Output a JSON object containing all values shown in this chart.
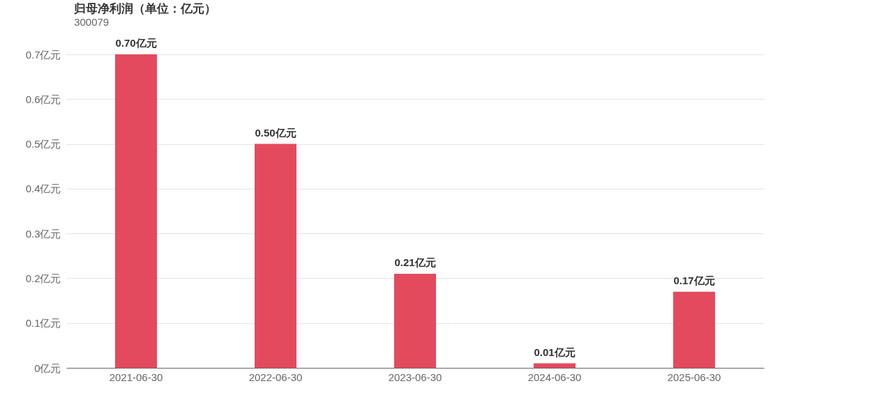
{
  "chart_data": {
    "type": "bar",
    "title": "归母净利润（单位：亿元）",
    "subtitle": "300079",
    "categories": [
      "2021-06-30",
      "2022-06-30",
      "2023-06-30",
      "2024-06-30",
      "2025-06-30"
    ],
    "values": [
      0.7,
      0.5,
      0.21,
      0.01,
      0.17
    ],
    "value_labels": [
      "0.70亿元",
      "0.50亿元",
      "0.21亿元",
      "0.01亿元",
      "0.17亿元"
    ],
    "color": "#e44a5e",
    "ylim": [
      0,
      0.7
    ],
    "yticks": [
      {
        "value": 0,
        "label": "0亿元"
      },
      {
        "value": 0.1,
        "label": "0.1亿元"
      },
      {
        "value": 0.2,
        "label": "0.2亿元"
      },
      {
        "value": 0.3,
        "label": "0.3亿元"
      },
      {
        "value": 0.4,
        "label": "0.4亿元"
      },
      {
        "value": 0.5,
        "label": "0.5亿元"
      },
      {
        "value": 0.6,
        "label": "0.6亿元"
      },
      {
        "value": 0.7,
        "label": "0.7亿元"
      }
    ],
    "grid": "y"
  }
}
